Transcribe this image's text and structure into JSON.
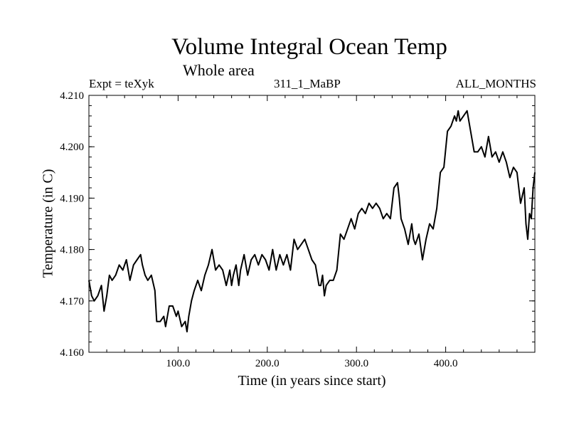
{
  "chart_data": {
    "type": "line",
    "title": "Volume Integral Ocean Temp",
    "subtitle": "Whole area",
    "header_left": "Expt = teXyk",
    "header_center": "311_1_MaBP",
    "header_right": "ALL_MONTHS",
    "xlabel": "Time (in years since start)",
    "ylabel": "Temperature (in C)",
    "xlim": [
      0,
      500
    ],
    "ylim": [
      4.16,
      4.21
    ],
    "x_ticks": [
      100,
      200,
      300,
      400
    ],
    "x_tick_labels": [
      "100.0",
      "200.0",
      "300.0",
      "400.0"
    ],
    "y_ticks": [
      4.16,
      4.17,
      4.18,
      4.19,
      4.2,
      4.21
    ],
    "y_tick_labels": [
      "4.160",
      "4.170",
      "4.180",
      "4.190",
      "4.200",
      "4.210"
    ],
    "grid": false,
    "line_color": "#000000",
    "x": [
      0,
      3,
      6,
      10,
      14,
      17,
      20,
      23,
      26,
      30,
      34,
      38,
      42,
      46,
      50,
      54,
      58,
      60,
      63,
      66,
      70,
      74,
      76,
      80,
      84,
      86,
      90,
      94,
      98,
      100,
      104,
      108,
      110,
      112,
      115,
      118,
      122,
      126,
      130,
      134,
      138,
      142,
      146,
      150,
      154,
      158,
      160,
      162,
      165,
      168,
      170,
      174,
      178,
      182,
      186,
      190,
      194,
      198,
      202,
      206,
      210,
      214,
      218,
      222,
      226,
      230,
      234,
      238,
      242,
      246,
      250,
      254,
      258,
      260,
      262,
      264,
      266,
      270,
      274,
      278,
      282,
      286,
      290,
      294,
      298,
      302,
      306,
      310,
      314,
      318,
      322,
      326,
      330,
      334,
      338,
      342,
      346,
      348,
      350,
      354,
      358,
      362,
      364,
      366,
      370,
      374,
      378,
      382,
      386,
      390,
      394,
      398,
      402,
      406,
      408,
      410,
      412,
      414,
      416,
      420,
      424,
      428,
      432,
      436,
      440,
      444,
      448,
      452,
      456,
      460,
      464,
      468,
      472,
      476,
      480,
      484,
      488,
      490,
      492,
      494,
      496,
      498,
      500
    ],
    "y": [
      4.174,
      4.171,
      4.17,
      4.171,
      4.173,
      4.168,
      4.171,
      4.175,
      4.174,
      4.175,
      4.177,
      4.176,
      4.178,
      4.174,
      4.177,
      4.178,
      4.179,
      4.177,
      4.175,
      4.174,
      4.175,
      4.172,
      4.166,
      4.166,
      4.167,
      4.165,
      4.169,
      4.169,
      4.167,
      4.168,
      4.165,
      4.166,
      4.164,
      4.167,
      4.17,
      4.172,
      4.174,
      4.172,
      4.175,
      4.177,
      4.18,
      4.176,
      4.177,
      4.176,
      4.173,
      4.176,
      4.173,
      4.175,
      4.177,
      4.173,
      4.176,
      4.179,
      4.175,
      4.178,
      4.179,
      4.177,
      4.179,
      4.178,
      4.176,
      4.18,
      4.176,
      4.179,
      4.177,
      4.179,
      4.176,
      4.182,
      4.18,
      4.181,
      4.182,
      4.18,
      4.178,
      4.177,
      4.173,
      4.173,
      4.175,
      4.171,
      4.173,
      4.174,
      4.174,
      4.176,
      4.183,
      4.182,
      4.184,
      4.186,
      4.184,
      4.187,
      4.188,
      4.187,
      4.189,
      4.188,
      4.189,
      4.188,
      4.186,
      4.187,
      4.186,
      4.192,
      4.193,
      4.19,
      4.186,
      4.184,
      4.181,
      4.185,
      4.182,
      4.181,
      4.183,
      4.178,
      4.182,
      4.185,
      4.184,
      4.188,
      4.195,
      4.196,
      4.203,
      4.204,
      4.205,
      4.206,
      4.205,
      4.207,
      4.205,
      4.206,
      4.207,
      4.203,
      4.199,
      4.199,
      4.2,
      4.198,
      4.202,
      4.198,
      4.199,
      4.197,
      4.199,
      4.197,
      4.194,
      4.196,
      4.195,
      4.189,
      4.192,
      4.185,
      4.182,
      4.187,
      4.186,
      4.192,
      4.195
    ]
  }
}
